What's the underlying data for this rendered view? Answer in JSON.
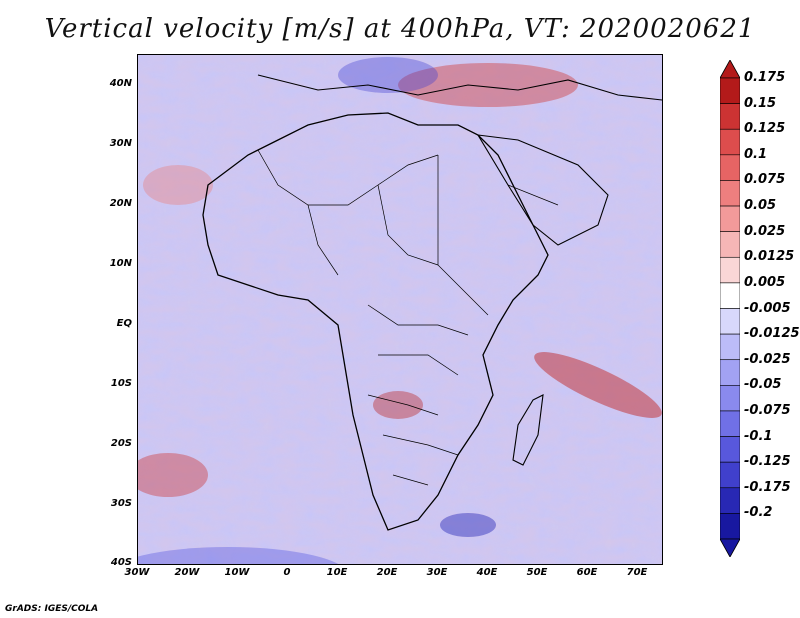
{
  "title": "Vertical velocity [m/s] at 400hPa, VT: 2020020621",
  "lat_labels": [
    "40N",
    "30N",
    "20N",
    "10N",
    "EQ",
    "10S",
    "20S",
    "30S",
    "40S"
  ],
  "lon_labels": [
    "30W",
    "20W",
    "10W",
    "0",
    "10E",
    "20E",
    "30E",
    "40E",
    "50E",
    "60E",
    "70E"
  ],
  "colorbar": {
    "labels": [
      "0.175",
      "0.15",
      "0.125",
      "0.1",
      "0.075",
      "0.05",
      "0.025",
      "0.0125",
      "0.005",
      "-0.005",
      "-0.0125",
      "-0.025",
      "-0.05",
      "-0.075",
      "-0.1",
      "-0.125",
      "-0.175",
      "-0.2"
    ],
    "colors": [
      "#b31a1a",
      "#cc3333",
      "#dd4d4d",
      "#e66464",
      "#ee7f7f",
      "#f29a9a",
      "#f6b6b6",
      "#fad6d6",
      "#ffffff",
      "#d8d8fb",
      "#bcbcf8",
      "#a2a2f3",
      "#8a8aee",
      "#7070e6",
      "#5858dc",
      "#4040cc",
      "#2828b4",
      "#1818a0"
    ]
  },
  "footer": "GrADS: IGES/COLA"
}
